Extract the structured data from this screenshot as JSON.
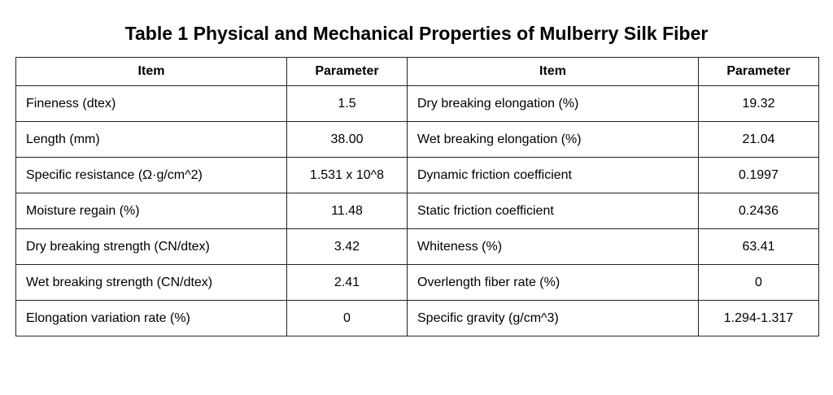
{
  "title": "Table 1  Physical and Mechanical Properties of Mulberry Silk Fiber",
  "table": {
    "header": [
      "Item",
      "Parameter",
      "Item",
      "Parameter"
    ],
    "rows": [
      [
        "Fineness (dtex)",
        "1.5",
        "Dry breaking elongation (%)",
        "19.32"
      ],
      [
        "Length (mm)",
        "38.00",
        "Wet breaking elongation (%)",
        "21.04"
      ],
      [
        "Specific resistance (Ω·g/cm^2)",
        "1.531 x 10^8",
        "Dynamic friction coefficient",
        "0.1997"
      ],
      [
        "Moisture regain (%)",
        "11.48",
        "Static friction coefficient",
        "0.2436"
      ],
      [
        "Dry breaking strength (CN/dtex)",
        "3.42",
        "Whiteness (%)",
        "63.41"
      ],
      [
        "Wet breaking strength (CN/dtex)",
        "2.41",
        "Overlength fiber rate (%)",
        "0"
      ],
      [
        "Elongation variation rate (%)",
        "0",
        "Specific gravity (g/cm^3)",
        "1.294-1.317"
      ]
    ]
  }
}
